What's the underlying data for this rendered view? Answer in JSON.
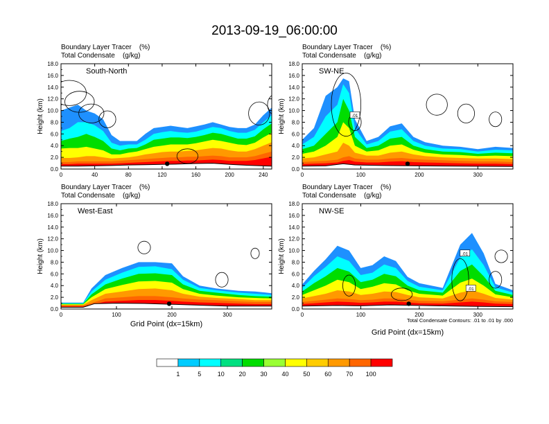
{
  "figure": {
    "title": "2013-09-19_06:00:00",
    "contour_note": "Total Condensate Contours: .01 to .01 by .000",
    "colorbar": {
      "levels": [
        "1",
        "5",
        "10",
        "20",
        "30",
        "40",
        "50",
        "60",
        "70",
        "100"
      ],
      "colors": [
        "#ffffff",
        "#1e90ff",
        "#00ccff",
        "#00ffff",
        "#00e080",
        "#00dd00",
        "#99ff33",
        "#ffff00",
        "#ffcc00",
        "#ff9900",
        "#ff6600",
        "#ff0000"
      ]
    }
  },
  "chart_data": [
    {
      "type": "heatmap",
      "label": "South-North",
      "header_line1": "Boundary Layer Tracer    (%)",
      "header_line2": "Total Condensate    (g/kg)",
      "ylabel": "Height (km)",
      "xlabel": "",
      "xlim": [
        0,
        250
      ],
      "ylim": [
        0,
        18
      ],
      "xticks": [
        "0",
        "40",
        "80",
        "120",
        "160",
        "200",
        "240"
      ],
      "xtick_values": [
        0,
        40,
        80,
        120,
        160,
        200,
        240
      ],
      "yticks": [
        "0.0",
        "2.0",
        "4.0",
        "6.0",
        "8.0",
        "10.0",
        "12.0",
        "14.0",
        "16.0",
        "18.0"
      ],
      "yvalues": [
        0,
        2,
        4,
        6,
        8,
        10,
        12,
        14,
        16,
        18
      ],
      "marker_x": 126,
      "profile": [
        [
          0,
          1.2,
          1.9,
          3.5,
          4.8,
          6.5,
          10
        ],
        [
          10,
          1.2,
          1.9,
          3.6,
          5.2,
          7,
          10.5
        ],
        [
          20,
          1.3,
          2,
          3.6,
          5.5,
          8,
          11
        ],
        [
          30,
          1.3,
          2.2,
          3.8,
          6,
          8,
          10
        ],
        [
          40,
          1.3,
          2.2,
          3.5,
          5.5,
          7.5,
          9.5
        ],
        [
          50,
          1.3,
          2,
          3.2,
          4.8,
          6.5,
          8.5
        ],
        [
          60,
          1.3,
          1.8,
          2.5,
          3.5,
          4.5,
          5.8
        ],
        [
          70,
          1.4,
          1.9,
          2.5,
          3.2,
          4,
          4.8
        ],
        [
          80,
          1.5,
          2,
          2.8,
          3.5,
          4.2,
          4.8
        ],
        [
          90,
          1.6,
          2.2,
          3,
          3.6,
          4.2,
          4.8
        ],
        [
          100,
          1.7,
          2.5,
          3.4,
          4.2,
          5,
          6
        ],
        [
          110,
          1.8,
          2.7,
          3.8,
          5,
          6,
          7
        ],
        [
          120,
          1.9,
          2.9,
          4,
          5.2,
          6.3,
          7.2
        ],
        [
          130,
          2,
          3,
          4.2,
          5.4,
          6.5,
          7.4
        ],
        [
          140,
          2,
          3,
          4.2,
          5.4,
          6.3,
          7.2
        ],
        [
          150,
          2.1,
          3.1,
          4.2,
          5.3,
          6.2,
          7
        ],
        [
          160,
          2.1,
          3.2,
          4.4,
          5.5,
          6.4,
          7.3
        ],
        [
          170,
          2.2,
          3.4,
          4.7,
          5.8,
          6.8,
          7.6
        ],
        [
          180,
          2.3,
          3.6,
          5,
          6.2,
          7.2,
          8
        ],
        [
          190,
          2.2,
          3.5,
          4.8,
          6,
          7,
          7.6
        ],
        [
          200,
          2,
          3.2,
          4.5,
          5.6,
          6.5,
          7.2
        ],
        [
          210,
          2,
          3,
          4.2,
          5.2,
          6.2,
          7
        ],
        [
          220,
          2,
          3,
          4.1,
          5.2,
          6.2,
          7
        ],
        [
          230,
          2.2,
          3.4,
          4.5,
          5.6,
          6.7,
          7.6
        ],
        [
          240,
          2.6,
          4,
          5.4,
          6.8,
          8,
          9.2
        ],
        [
          250,
          3,
          4.6,
          6.2,
          7.8,
          9.2,
          10.5
        ]
      ],
      "terrain": [
        [
          0,
          1
        ],
        [
          20,
          1
        ],
        [
          40,
          1.1
        ],
        [
          60,
          1.2
        ],
        [
          80,
          1.4
        ],
        [
          100,
          1.5
        ],
        [
          120,
          1.6
        ],
        [
          140,
          1.7
        ],
        [
          160,
          1.9
        ],
        [
          180,
          2
        ],
        [
          200,
          1.6
        ],
        [
          220,
          1.3
        ],
        [
          240,
          1.1
        ],
        [
          250,
          1
        ]
      ],
      "contours": [
        [
          10,
          13,
          0.08,
          0.12
        ],
        [
          22,
          11.5,
          0.07,
          0.1
        ],
        [
          36,
          9.5,
          0.06,
          0.09
        ],
        [
          55,
          8.5,
          0.04,
          0.08
        ],
        [
          150,
          2.2,
          0.05,
          0.07
        ],
        [
          235,
          9.5,
          0.05,
          0.11
        ],
        [
          255,
          11,
          0.04,
          0.1
        ]
      ]
    },
    {
      "type": "heatmap",
      "label": "SW-NE",
      "header_line1": "Boundary Layer Tracer    (%)",
      "header_line2": "Total Condensate    (g/kg)",
      "ylabel": "Height (km)",
      "xlabel": "",
      "xlim": [
        0,
        360
      ],
      "ylim": [
        0,
        18
      ],
      "xticks": [
        "0",
        "100",
        "200",
        "300"
      ],
      "xtick_values": [
        0,
        100,
        200,
        300
      ],
      "yticks": [
        "0.0",
        "2.0",
        "4.0",
        "6.0",
        "8.0",
        "10.0",
        "12.0",
        "14.0",
        "16.0",
        "18.0"
      ],
      "yvalues": [
        0,
        2,
        4,
        6,
        8,
        10,
        12,
        14,
        16,
        18
      ],
      "marker_x": 180,
      "box_labels": [
        ".01"
      ],
      "box_x": [
        90
      ],
      "box_y": [
        9.2
      ],
      "profile": [
        [
          0,
          1.2,
          1.8,
          2.6,
          3.4,
          4.2,
          5
        ],
        [
          20,
          1.3,
          2,
          3,
          4,
          5.5,
          7
        ],
        [
          40,
          1.4,
          2.5,
          4,
          6,
          9,
          12.5
        ],
        [
          60,
          1.6,
          3,
          5.5,
          8,
          11,
          14
        ],
        [
          70,
          2,
          4.5,
          8,
          12,
          14.5,
          15.5
        ],
        [
          80,
          2.2,
          4,
          7,
          10,
          13,
          15
        ],
        [
          90,
          1.8,
          2.8,
          4,
          5.5,
          7,
          8.5
        ],
        [
          110,
          1.6,
          2.3,
          3,
          3.6,
          4.2,
          4.8
        ],
        [
          130,
          1.6,
          2.3,
          3.2,
          4,
          4.8,
          5.5
        ],
        [
          150,
          1.8,
          2.8,
          4,
          5.2,
          6.4,
          7.3
        ],
        [
          170,
          1.9,
          3,
          4.2,
          5.5,
          6.8,
          7.8
        ],
        [
          190,
          1.7,
          2.5,
          3.3,
          4,
          4.8,
          5.5
        ],
        [
          210,
          1.6,
          2.2,
          2.8,
          3.4,
          4,
          4.6
        ],
        [
          240,
          1.5,
          2,
          2.5,
          3,
          3.5,
          4
        ],
        [
          270,
          1.4,
          1.9,
          2.4,
          2.9,
          3.4,
          3.8
        ],
        [
          300,
          1.3,
          1.8,
          2.2,
          2.6,
          3,
          3.4
        ],
        [
          330,
          1.3,
          1.8,
          2.3,
          2.8,
          3.3,
          3.8
        ],
        [
          360,
          1.2,
          1.7,
          2.2,
          2.7,
          3.2,
          3.6
        ]
      ],
      "terrain": [
        [
          0,
          1
        ],
        [
          40,
          1.1
        ],
        [
          70,
          1.8
        ],
        [
          90,
          1.4
        ],
        [
          140,
          1.2
        ],
        [
          200,
          1.1
        ],
        [
          260,
          1
        ],
        [
          360,
          0.9
        ]
      ],
      "contours": [
        [
          75,
          11,
          0.07,
          0.3
        ],
        [
          90,
          8,
          0.03,
          0.08
        ],
        [
          230,
          11,
          0.05,
          0.1
        ],
        [
          280,
          9.5,
          0.04,
          0.09
        ],
        [
          330,
          8.5,
          0.03,
          0.07
        ]
      ]
    },
    {
      "type": "heatmap",
      "label": "West-East",
      "header_line1": "Boundary Layer Tracer    (%)",
      "header_line2": "Total Condensate    (g/kg)",
      "ylabel": "Height (km)",
      "xlabel": "Grid Point (dx=15km)",
      "xlim": [
        0,
        380
      ],
      "ylim": [
        0,
        18
      ],
      "xticks": [
        "0",
        "100",
        "200",
        "300"
      ],
      "xtick_values": [
        0,
        100,
        200,
        300
      ],
      "yticks": [
        "0.0",
        "2.0",
        "4.0",
        "6.0",
        "8.0",
        "10.0",
        "12.0",
        "14.0",
        "16.0",
        "18.0"
      ],
      "yvalues": [
        0,
        2,
        4,
        6,
        8,
        10,
        12,
        14,
        16,
        18
      ],
      "marker_x": 195,
      "profile": [
        [
          0,
          0.6,
          0.7,
          0.8,
          0.9,
          1,
          1.1
        ],
        [
          40,
          0.6,
          0.7,
          0.8,
          0.9,
          1,
          1.1
        ],
        [
          55,
          1,
          1.5,
          2,
          2.5,
          3,
          3.5
        ],
        [
          80,
          1.8,
          2.6,
          3.4,
          4.2,
          5,
          5.8
        ],
        [
          110,
          2,
          3,
          4.1,
          5.2,
          6.2,
          7
        ],
        [
          140,
          2.2,
          3.4,
          4.7,
          6,
          7.2,
          8
        ],
        [
          170,
          2.2,
          3.5,
          4.8,
          6.1,
          7.3,
          8
        ],
        [
          200,
          2,
          3.2,
          4.5,
          5.8,
          6.8,
          7.8
        ],
        [
          220,
          1.8,
          2.6,
          3.4,
          4.2,
          5,
          5.6
        ],
        [
          250,
          1.6,
          2.1,
          2.6,
          3.1,
          3.6,
          4
        ],
        [
          280,
          1.5,
          1.9,
          2.3,
          2.8,
          3.2,
          3.5
        ],
        [
          320,
          1.3,
          1.7,
          2,
          2.4,
          2.8,
          3.1
        ],
        [
          350,
          1.2,
          1.5,
          1.9,
          2.2,
          2.6,
          3
        ],
        [
          380,
          1.2,
          1.5,
          1.8,
          2.1,
          2.4,
          2.7
        ]
      ],
      "terrain": [
        [
          0,
          0.6
        ],
        [
          40,
          0.6
        ],
        [
          60,
          1.8
        ],
        [
          100,
          2
        ],
        [
          150,
          1.9
        ],
        [
          200,
          1.6
        ],
        [
          250,
          1.3
        ],
        [
          300,
          1
        ],
        [
          380,
          1
        ]
      ],
      "contours": [
        [
          150,
          10.5,
          0.03,
          0.06
        ],
        [
          290,
          5,
          0.03,
          0.07
        ],
        [
          350,
          9.5,
          0.02,
          0.05
        ]
      ]
    },
    {
      "type": "heatmap",
      "label": "NW-SE",
      "header_line1": "Boundary Layer Tracer    (%)",
      "header_line2": "Total Condensate    (g/kg)",
      "ylabel": "Height (km)",
      "xlabel": "Grid Point (dx=15km)",
      "xlim": [
        0,
        360
      ],
      "ylim": [
        0,
        18
      ],
      "xticks": [
        "0",
        "100",
        "200",
        "300"
      ],
      "xtick_values": [
        0,
        100,
        200,
        300
      ],
      "yticks": [
        "0.0",
        "2.0",
        "4.0",
        "6.0",
        "8.0",
        "10.0",
        "12.0",
        "14.0",
        "16.0",
        "18.0"
      ],
      "yvalues": [
        0,
        2,
        4,
        6,
        8,
        10,
        12,
        14,
        16,
        18
      ],
      "marker_x": 182,
      "box_labels": [
        ".01",
        ".01"
      ],
      "box_x": [
        278,
        288
      ],
      "box_y": [
        9.5,
        3.5
      ],
      "profile": [
        [
          0,
          1.2,
          1.8,
          2.4,
          3,
          3.6,
          4.2
        ],
        [
          20,
          1.4,
          2.2,
          3.2,
          4.4,
          5.6,
          6.5
        ],
        [
          40,
          1.6,
          2.6,
          4,
          5.6,
          7.2,
          8.5
        ],
        [
          60,
          1.8,
          3.2,
          5,
          7,
          9,
          10.8
        ],
        [
          80,
          1.7,
          3,
          4.6,
          6.4,
          8.2,
          10
        ],
        [
          100,
          1.5,
          2.4,
          3.4,
          4.6,
          5.8,
          7
        ],
        [
          120,
          1.6,
          2.6,
          3.8,
          5,
          6.2,
          7.5
        ],
        [
          140,
          1.8,
          3,
          4.4,
          6,
          7.6,
          9
        ],
        [
          160,
          1.8,
          2.9,
          4.2,
          5.6,
          7,
          8.2
        ],
        [
          180,
          1.6,
          2.4,
          3.2,
          4,
          4.8,
          5.5
        ],
        [
          200,
          1.4,
          2,
          2.6,
          3.2,
          3.8,
          4.4
        ],
        [
          240,
          1.3,
          1.8,
          2.3,
          2.8,
          3.2,
          3.6
        ],
        [
          270,
          1.6,
          2.8,
          4.5,
          6.5,
          8.8,
          11
        ],
        [
          290,
          1.8,
          3.2,
          5.2,
          7.6,
          10.2,
          13
        ],
        [
          310,
          1.6,
          2.6,
          4,
          5.6,
          7.5,
          9.5
        ],
        [
          330,
          1.3,
          1.9,
          2.5,
          3.1,
          3.7,
          4.3
        ],
        [
          360,
          1.2,
          1.6,
          2,
          2.4,
          2.8,
          3.2
        ]
      ],
      "terrain": [
        [
          0,
          1
        ],
        [
          60,
          1.2
        ],
        [
          100,
          1.1
        ],
        [
          150,
          1.4
        ],
        [
          200,
          1.2
        ],
        [
          260,
          1
        ],
        [
          300,
          0.9
        ],
        [
          360,
          0.8
        ]
      ],
      "contours": [
        [
          80,
          4,
          0.03,
          0.1
        ],
        [
          170,
          2.5,
          0.05,
          0.06
        ],
        [
          270,
          5,
          0.04,
          0.2
        ],
        [
          330,
          5,
          0.03,
          0.08
        ],
        [
          340,
          9,
          0.03,
          0.06
        ]
      ]
    }
  ]
}
